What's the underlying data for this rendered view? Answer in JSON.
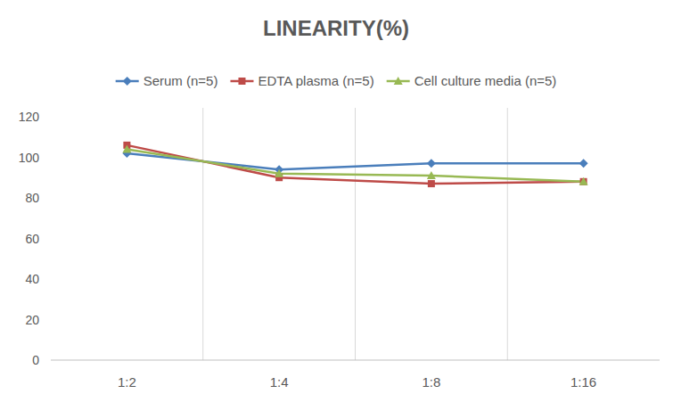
{
  "chart_data": {
    "type": "line",
    "title": "LINEARITY(%)",
    "categories": [
      "1:2",
      "1:4",
      "1:8",
      "1:16"
    ],
    "series": [
      {
        "name": "Serum (n=5)",
        "color": "#4a7ebb",
        "marker": "diamond",
        "values": [
          102,
          94,
          97,
          97
        ]
      },
      {
        "name": "EDTA plasma (n=5)",
        "color": "#be4b48",
        "marker": "square",
        "values": [
          106,
          90,
          87,
          88
        ]
      },
      {
        "name": "Cell culture media (n=5)",
        "color": "#98b954",
        "marker": "triangle",
        "values": [
          104,
          92,
          91,
          88
        ]
      }
    ],
    "ylim": [
      0,
      120
    ],
    "yticks": [
      0,
      20,
      40,
      60,
      80,
      100,
      120
    ],
    "grid": true,
    "legend": "top"
  }
}
